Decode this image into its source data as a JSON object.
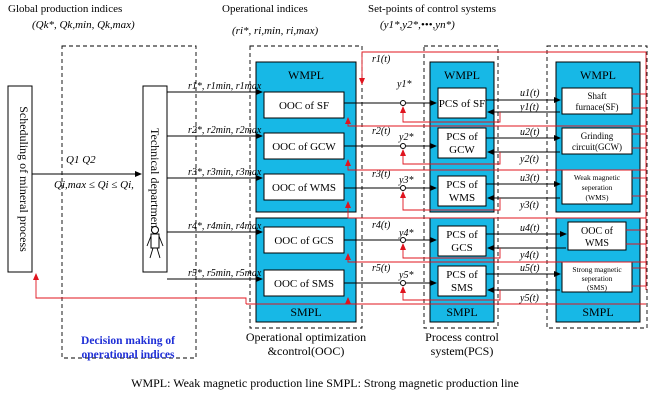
{
  "headers": {
    "global": "Global production indices",
    "global_symbols": "(Qk*, Qk,min, Qk,max)",
    "operational": "Operational indices",
    "operational_symbols": "(ri*, ri,min, ri,max)",
    "setpoints": "Set-points of control systems",
    "setpoint_symbols": "(y1*,y2*,•••,yn*)"
  },
  "blocks": {
    "scheduling": "Scheduling of mineral process",
    "tech_dept": "Technical department"
  },
  "labels": {
    "q_flow": "Q1   Q2",
    "q_constraint": "Qi,max ≤ Qi ≤ Qi,"
  },
  "panels": {
    "ooc": {
      "top": "WMPL",
      "bottom": "SMPL"
    },
    "pcs": {
      "top": "WMPL",
      "bottom": "SMPL"
    },
    "process": {
      "top": "WMPL",
      "bottom": "SMPL"
    }
  },
  "ooc": [
    "OOC of SF",
    "OOC of GCW",
    "OOC of WMS",
    "OOC of GCS",
    "OOC of SMS"
  ],
  "pcs": [
    "PCS of SF"
  ],
  "pcs_lines": [
    [
      "PCS of",
      "GCW"
    ],
    [
      "PCS of",
      "WMS"
    ],
    [
      "PCS of",
      "GCS"
    ],
    [
      "PCS of",
      "SMS"
    ]
  ],
  "process": [
    [
      "Shaft",
      "furnace(SF)"
    ],
    [
      "Grinding",
      "circuit(GCW)"
    ],
    [
      "Weak magnetic",
      "seperation",
      "(WMS)"
    ],
    [
      "OOC of",
      "WMS"
    ],
    [
      "Strong magnetic",
      "seperation",
      "(SMS)"
    ]
  ],
  "indices": [
    "r1*, r1min, r1max",
    "r2*, r2min, r2max",
    "r3*, r3min, r3max",
    "r4*, r4min, r4max",
    "r5*, r5min, r5max"
  ],
  "setpoints": [
    "y1*",
    "y2*",
    "y3*",
    "y4*",
    "y5*"
  ],
  "feedback_r": [
    "r1(t)",
    "r2(t)",
    "r3(t)",
    "r4(t)",
    "r5(t)"
  ],
  "control_u": [
    "u1(t)",
    "u2(t)",
    "u3(t)",
    "u4(t)",
    "u5(t)"
  ],
  "output_y": [
    "y1(t)",
    "y2(t)",
    "y3(t)",
    "y4(t)",
    "y5(t)"
  ],
  "captions": {
    "decision": [
      "Decision making of",
      "operational indices"
    ],
    "ooc": [
      "Operational optimization",
      "&control(OOC)"
    ],
    "pcs": [
      "Process control",
      "system(PCS)"
    ]
  },
  "legend": "WMPL: Weak magnetic production line     SMPL: Strong magnetic production line"
}
